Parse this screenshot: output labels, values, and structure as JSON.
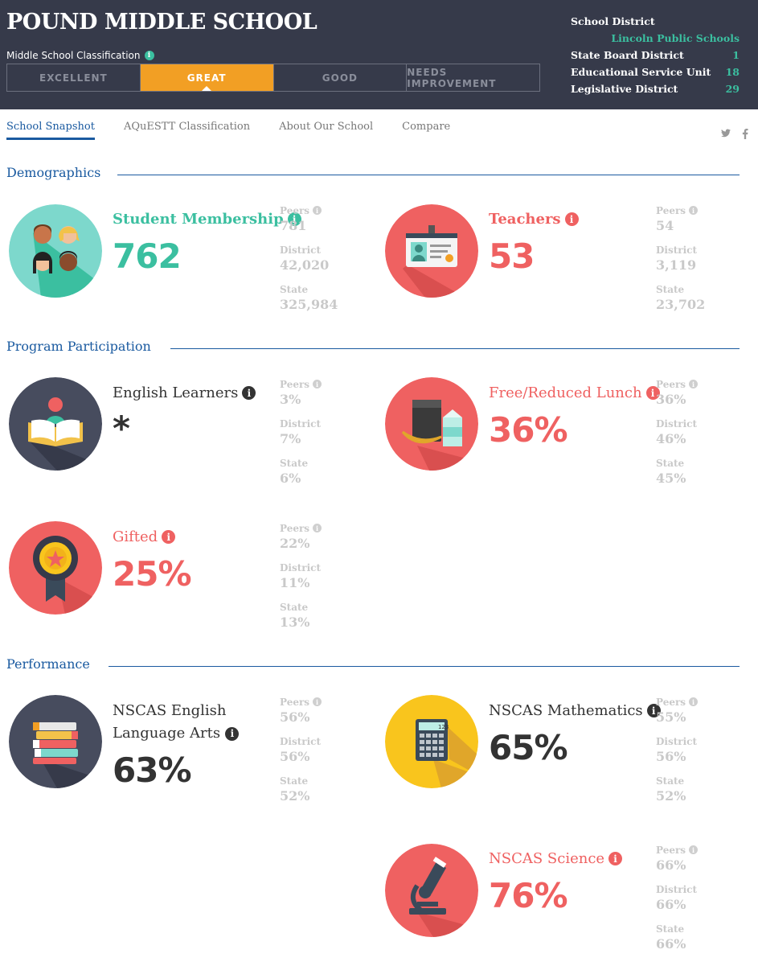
{
  "header": {
    "school_name": "POUND MIDDLE SCHOOL",
    "classification_label": "Middle School Classification",
    "ratings": [
      "EXCELLENT",
      "GREAT",
      "GOOD",
      "NEEDS IMPROVEMENT"
    ],
    "active_rating": "GREAT",
    "district_label": "School District",
    "district_name": "Lincoln Public Schools",
    "info_rows": [
      {
        "label": "State Board District",
        "value": "1"
      },
      {
        "label": "Educational Service Unit",
        "value": "18"
      },
      {
        "label": "Legislative District",
        "value": "29"
      }
    ]
  },
  "nav": {
    "tabs": [
      "School Snapshot",
      "AQuESTT Classification",
      "About Our School",
      "Compare"
    ],
    "active_tab": "School Snapshot",
    "social": [
      "twitter-icon",
      "facebook-icon"
    ]
  },
  "labels": {
    "peers": "Peers",
    "district": "District",
    "state": "State"
  },
  "sections": {
    "demographics": "Demographics",
    "program": "Program Participation",
    "performance": "Performance"
  },
  "stats": {
    "membership": {
      "title": "Student Membership",
      "value": "762",
      "peers": "781",
      "district": "42,020",
      "state": "325,984"
    },
    "teachers": {
      "title": "Teachers",
      "value": "53",
      "peers": "54",
      "district": "3,119",
      "state": "23,702"
    },
    "english_learners": {
      "title": "English Learners",
      "value": "*",
      "peers": "3%",
      "district": "7%",
      "state": "6%"
    },
    "lunch": {
      "title": "Free/Reduced Lunch",
      "value": "36%",
      "peers": "36%",
      "district": "46%",
      "state": "45%"
    },
    "gifted": {
      "title": "Gifted",
      "value": "25%",
      "peers": "22%",
      "district": "11%",
      "state": "13%"
    },
    "ela": {
      "title_line1": "NSCAS English",
      "title_line2": "Language Arts",
      "value": "63%",
      "peers": "56%",
      "district": "56%",
      "state": "52%"
    },
    "math": {
      "title": "NSCAS Mathematics",
      "value": "65%",
      "peers": "55%",
      "district": "56%",
      "state": "52%"
    },
    "science": {
      "title": "NSCAS Science",
      "value": "76%",
      "peers": "66%",
      "district": "66%",
      "state": "66%"
    }
  },
  "colors": {
    "teal": "#3bbfa0",
    "red": "#ef6161",
    "dark": "#363a4a",
    "orange": "#f29f24",
    "yellow": "#f9c51d",
    "blue": "#1a5aa0"
  },
  "info_glyph": "i",
  "calculator_display": "123"
}
